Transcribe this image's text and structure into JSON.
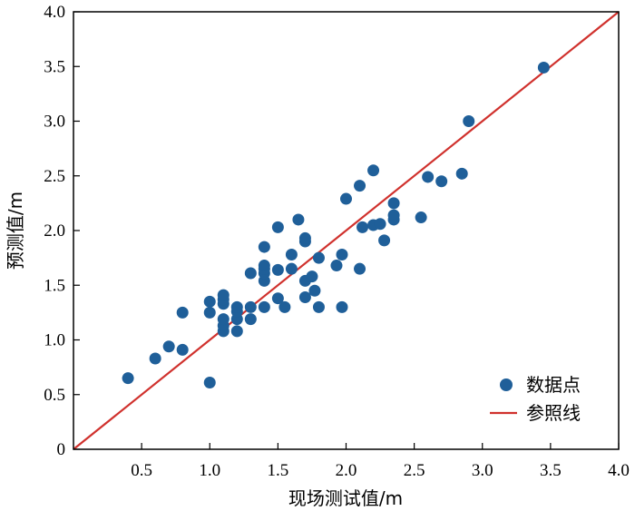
{
  "chart_data": {
    "type": "scatter",
    "xlabel": "现场测试值/m",
    "ylabel": "预测值/m",
    "xlim": [
      0,
      4.0
    ],
    "ylim": [
      0,
      4.0
    ],
    "x_ticks": [
      0.5,
      1.0,
      1.5,
      2.0,
      2.5,
      3.0,
      3.5,
      4.0
    ],
    "x_tick_labels": [
      "0.5",
      "1.0",
      "1.5",
      "2.0",
      "2.5",
      "3.0",
      "3.5",
      "4.0"
    ],
    "y_ticks": [
      0,
      0.5,
      1.0,
      1.5,
      2.0,
      2.5,
      3.0,
      3.5,
      4.0
    ],
    "y_tick_labels": [
      "0",
      "0.5",
      "1.0",
      "1.5",
      "2.0",
      "2.5",
      "3.0",
      "3.5",
      "4.0"
    ],
    "grid": false,
    "legend_position": "bottom-right",
    "series": [
      {
        "name": "数据点",
        "kind": "scatter",
        "color": "#1f5f99",
        "points": [
          [
            0.4,
            0.65
          ],
          [
            0.6,
            0.83
          ],
          [
            0.7,
            0.94
          ],
          [
            0.8,
            0.91
          ],
          [
            0.8,
            1.25
          ],
          [
            1.0,
            0.61
          ],
          [
            1.0,
            1.25
          ],
          [
            1.0,
            1.35
          ],
          [
            1.1,
            1.08
          ],
          [
            1.1,
            1.13
          ],
          [
            1.1,
            1.19
          ],
          [
            1.1,
            1.33
          ],
          [
            1.1,
            1.37
          ],
          [
            1.1,
            1.41
          ],
          [
            1.2,
            1.08
          ],
          [
            1.2,
            1.19
          ],
          [
            1.2,
            1.26
          ],
          [
            1.2,
            1.3
          ],
          [
            1.3,
            1.19
          ],
          [
            1.3,
            1.3
          ],
          [
            1.3,
            1.61
          ],
          [
            1.4,
            1.3
          ],
          [
            1.4,
            1.54
          ],
          [
            1.4,
            1.61
          ],
          [
            1.4,
            1.65
          ],
          [
            1.4,
            1.68
          ],
          [
            1.4,
            1.85
          ],
          [
            1.5,
            1.38
          ],
          [
            1.5,
            1.64
          ],
          [
            1.5,
            2.03
          ],
          [
            1.55,
            1.3
          ],
          [
            1.6,
            1.65
          ],
          [
            1.6,
            1.78
          ],
          [
            1.65,
            2.1
          ],
          [
            1.7,
            1.39
          ],
          [
            1.7,
            1.54
          ],
          [
            1.7,
            1.9
          ],
          [
            1.7,
            1.93
          ],
          [
            1.75,
            1.58
          ],
          [
            1.77,
            1.45
          ],
          [
            1.8,
            1.3
          ],
          [
            1.8,
            1.75
          ],
          [
            1.93,
            1.68
          ],
          [
            1.97,
            1.3
          ],
          [
            1.97,
            1.78
          ],
          [
            2.0,
            2.29
          ],
          [
            2.1,
            1.65
          ],
          [
            2.1,
            2.41
          ],
          [
            2.12,
            2.03
          ],
          [
            2.2,
            2.05
          ],
          [
            2.2,
            2.55
          ],
          [
            2.25,
            2.06
          ],
          [
            2.28,
            1.91
          ],
          [
            2.35,
            2.1
          ],
          [
            2.35,
            2.14
          ],
          [
            2.35,
            2.25
          ],
          [
            2.55,
            2.12
          ],
          [
            2.6,
            2.49
          ],
          [
            2.7,
            2.45
          ],
          [
            2.85,
            2.52
          ],
          [
            2.9,
            3.0
          ],
          [
            3.45,
            3.49
          ]
        ]
      },
      {
        "name": "参照线",
        "kind": "line",
        "color": "#d0312d",
        "points": [
          [
            0,
            0
          ],
          [
            4.0,
            4.0
          ]
        ]
      }
    ]
  }
}
